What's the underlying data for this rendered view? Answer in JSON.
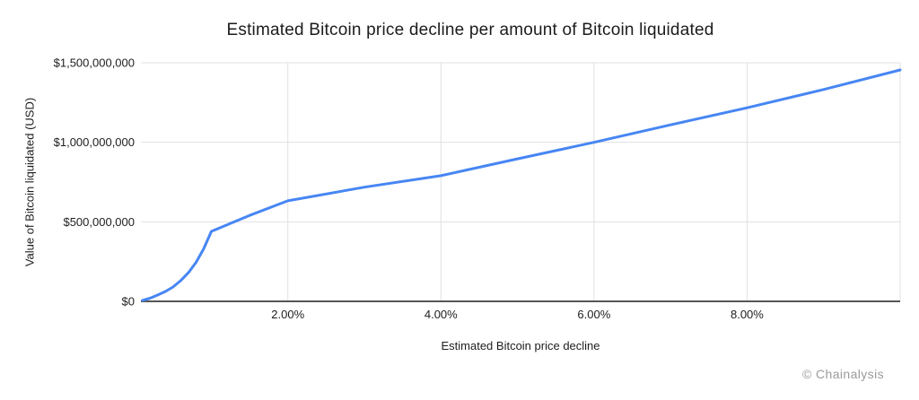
{
  "page": {
    "background": "#ffffff"
  },
  "footer": {
    "watermark": "© Chainalysis"
  },
  "style": {
    "grid_color": "#e0e0e0",
    "axis_color": "#565656",
    "text_color": "#1d1d1d",
    "title_color": "#1c1c1c",
    "watermark_color": "#9b9b9b",
    "line_color": "#4786f3"
  },
  "chart_data": {
    "type": "line",
    "title": "Estimated Bitcoin price decline per amount of Bitcoin liquidated",
    "xlabel": "Estimated Bitcoin price decline",
    "ylabel": "Value of Bitcoin liquidated (USD)",
    "xlim": [
      0.08,
      10.0
    ],
    "ylim": [
      0,
      1500000000
    ],
    "grid": true,
    "legend": "none",
    "x_ticks": [
      {
        "value": 2,
        "label": "2.00%"
      },
      {
        "value": 4,
        "label": "4.00%"
      },
      {
        "value": 6,
        "label": "6.00%"
      },
      {
        "value": 8,
        "label": "8.00%"
      }
    ],
    "y_ticks": [
      {
        "value": 0,
        "label": "$0"
      },
      {
        "value": 500000000,
        "label": "$500,000,000"
      },
      {
        "value": 1000000000,
        "label": "$1,000,000,000"
      },
      {
        "value": 1500000000,
        "label": "$1,500,000,000"
      }
    ],
    "series": [
      {
        "name": "Value of Bitcoin liquidated",
        "color": "#4786f3",
        "x_percent_decline": [
          0.1,
          0.2,
          0.3,
          0.4,
          0.5,
          0.6,
          0.7,
          0.8,
          0.9,
          1.0,
          1.5,
          2.0,
          3.0,
          4.0,
          5.0,
          6.0,
          7.0,
          8.0,
          9.0,
          10.0
        ],
        "y_usd": [
          6000000,
          20000000,
          40000000,
          62000000,
          90000000,
          130000000,
          180000000,
          245000000,
          330000000,
          440000000,
          540000000,
          632000000,
          718000000,
          790000000,
          896000000,
          1000000000,
          1110000000,
          1217000000,
          1332000000,
          1455000000
        ]
      }
    ]
  }
}
